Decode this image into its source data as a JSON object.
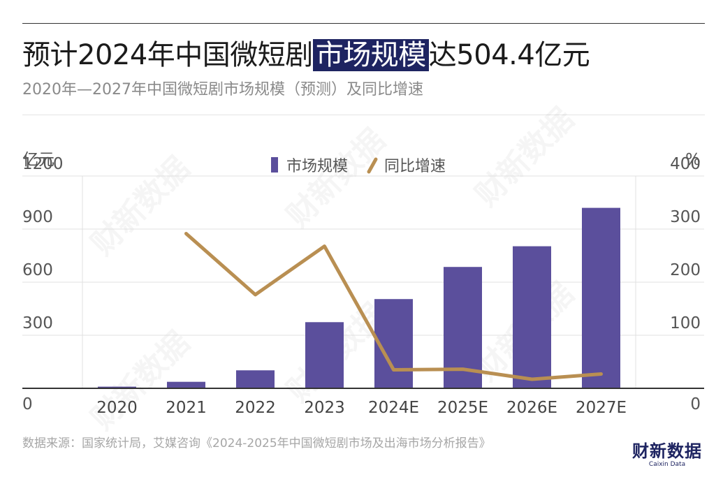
{
  "title": {
    "prefix": "预计2024年中国微短剧",
    "highlight": "市场规模",
    "suffix": "达504.4亿元"
  },
  "subtitle": "2020年—2027年中国微短剧市场规模（预测）及同比增速",
  "source": "数据来源：国家统计局，艾媒咨询《2024-2025年中国微短剧市场及出海市场分析报告》",
  "logo": {
    "main": "财新数据",
    "sub": "Caixin Data"
  },
  "watermark": "财新数据",
  "colors": {
    "bar": "#5b4f9c",
    "line": "#b98f52",
    "highlight": "#1e2461",
    "grid": "#e0e0e0"
  },
  "chart_data": {
    "type": "bar",
    "categories": [
      "2020",
      "2021",
      "2022",
      "2023",
      "2024E",
      "2025E",
      "2026E",
      "2027E"
    ],
    "series": [
      {
        "name": "市场规模",
        "type": "bar",
        "axis": "left",
        "values": [
          9.4,
          36.8,
          101.7,
          373.9,
          504.4,
          686.0,
          803.0,
          1020.0
        ]
      },
      {
        "name": "同比增速",
        "type": "line",
        "axis": "right",
        "values": [
          null,
          291.5,
          176.4,
          267.7,
          34.9,
          36.0,
          17.1,
          27.0
        ]
      }
    ],
    "yaxis_left": {
      "label": "亿元",
      "ticks": [
        "0",
        "300",
        "600",
        "900",
        "1200"
      ],
      "ylim": [
        0,
        1200
      ]
    },
    "yaxis_right": {
      "label": "%",
      "ticks": [
        "0",
        "100",
        "200",
        "300",
        "400"
      ],
      "ylim": [
        0,
        400
      ]
    },
    "legend": "top-center",
    "grid": true
  }
}
